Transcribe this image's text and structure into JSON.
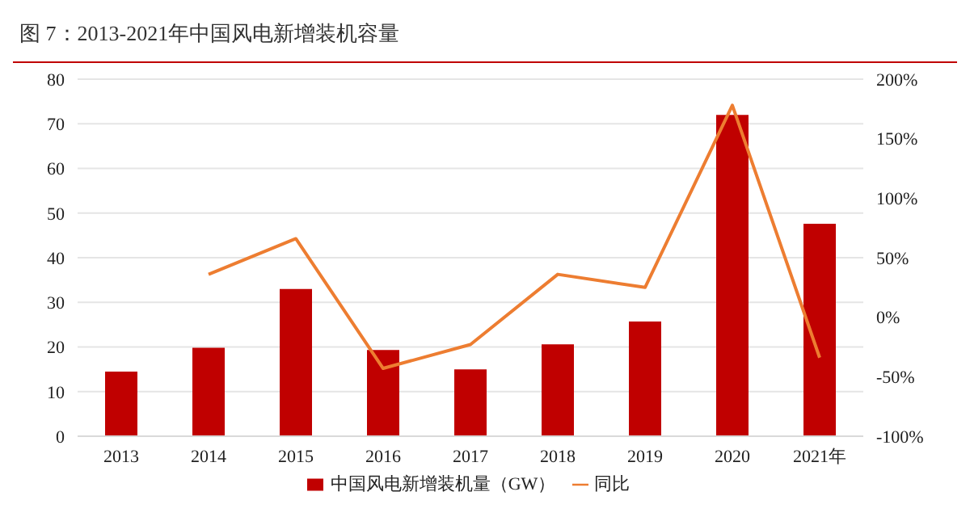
{
  "chart_data": {
    "type": "bar",
    "title": "图 7：2013-2021年中国风电新增装机容量",
    "categories": [
      "2013",
      "2014",
      "2015",
      "2016",
      "2017",
      "2018",
      "2019",
      "2020",
      "2021年"
    ],
    "series": [
      {
        "name": "中国风电新增装机量（GW）",
        "color": "#c00000",
        "values": [
          14.5,
          19.8,
          33,
          19.3,
          15,
          20.6,
          25.7,
          72,
          47.6
        ]
      },
      {
        "name": "同比",
        "type": "line",
        "axis": "y2",
        "color": "#ed7d31",
        "values": [
          null,
          36,
          66,
          -43,
          -23,
          36,
          25,
          178,
          -34
        ]
      }
    ],
    "ylim": [
      0,
      80
    ],
    "yticks": [
      0,
      10,
      20,
      30,
      40,
      50,
      60,
      70,
      80
    ],
    "y2lim": [
      -100,
      200
    ],
    "y2ticks": [
      {
        "value": -100,
        "label": "-100%"
      },
      {
        "value": -50,
        "label": "-50%"
      },
      {
        "value": 0,
        "label": "0%"
      },
      {
        "value": 50,
        "label": "50%"
      },
      {
        "value": 100,
        "label": "100%"
      },
      {
        "value": 150,
        "label": "150%"
      },
      {
        "value": 200,
        "label": "200%"
      }
    ],
    "grid": "y",
    "legend": "bottom",
    "marker": "none"
  }
}
